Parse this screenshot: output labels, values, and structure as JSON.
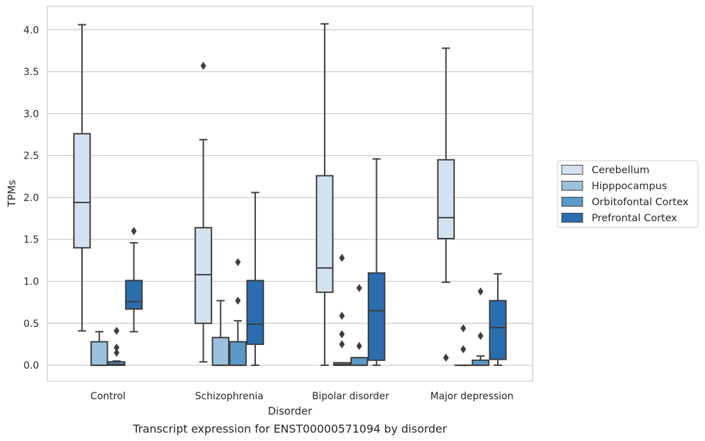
{
  "caption": "Transcript expression for ENST00000571094 by disorder",
  "chart_data": {
    "type": "box",
    "xlabel": "Disorder",
    "ylabel": "TPMs",
    "ylim": [
      -0.19,
      4.28
    ],
    "yticks": [
      0.0,
      0.5,
      1.0,
      1.5,
      2.0,
      2.5,
      3.0,
      3.5,
      4.0
    ],
    "ytick_labels": [
      "0.0",
      "0.5",
      "1.0",
      "1.5",
      "2.0",
      "2.5",
      "3.0",
      "3.5",
      "4.0"
    ],
    "grid": "horizontal",
    "legend_position": "right",
    "categories": [
      "Control",
      "Schizophrenia",
      "Bipolar disorder",
      "Major depression"
    ],
    "series": [
      {
        "name": "Cerebellum",
        "color": "#d3e2f1",
        "boxes": [
          {
            "whisker_low": 0.41,
            "q1": 1.4,
            "median": 1.94,
            "q3": 2.76,
            "whisker_high": 4.06,
            "outliers": []
          },
          {
            "whisker_low": 0.04,
            "q1": 0.5,
            "median": 1.08,
            "q3": 1.64,
            "whisker_high": 2.69,
            "outliers": [
              3.57
            ]
          },
          {
            "whisker_low": 0.0,
            "q1": 0.87,
            "median": 1.16,
            "q3": 2.26,
            "whisker_high": 4.07,
            "outliers": []
          },
          {
            "whisker_low": 0.99,
            "q1": 1.51,
            "median": 1.76,
            "q3": 2.45,
            "whisker_high": 3.78,
            "outliers": [
              0.09
            ]
          }
        ]
      },
      {
        "name": "Hipppocampus",
        "color": "#9ac1dc",
        "boxes": [
          {
            "whisker_low": 0.0,
            "q1": 0.0,
            "median": 0.0,
            "q3": 0.28,
            "whisker_high": 0.4,
            "outliers": []
          },
          {
            "whisker_low": 0.0,
            "q1": 0.0,
            "median": 0.0,
            "q3": 0.33,
            "whisker_high": 0.77,
            "outliers": []
          },
          {
            "whisker_low": 0.0,
            "q1": 0.0,
            "median": 0.01,
            "q3": 0.03,
            "whisker_high": 0.03,
            "outliers": [
              0.25,
              0.37,
              0.59,
              1.28
            ]
          },
          {
            "whisker_low": 0.0,
            "q1": 0.0,
            "median": 0.0,
            "q3": 0.0,
            "whisker_high": 0.0,
            "outliers": [
              0.19,
              0.44
            ]
          }
        ]
      },
      {
        "name": "Orbitofontal Cortex",
        "color": "#5a9ac9",
        "boxes": [
          {
            "whisker_low": 0.0,
            "q1": 0.0,
            "median": 0.01,
            "q3": 0.04,
            "whisker_high": 0.05,
            "outliers": [
              0.15,
              0.21,
              0.41
            ]
          },
          {
            "whisker_low": 0.0,
            "q1": 0.0,
            "median": 0.0,
            "q3": 0.28,
            "whisker_high": 0.53,
            "outliers": [
              0.77,
              1.23
            ]
          },
          {
            "whisker_low": 0.0,
            "q1": 0.0,
            "median": 0.0,
            "q3": 0.09,
            "whisker_high": 0.09,
            "outliers": [
              0.23,
              0.92
            ]
          },
          {
            "whisker_low": 0.0,
            "q1": 0.0,
            "median": 0.0,
            "q3": 0.06,
            "whisker_high": 0.11,
            "outliers": [
              0.35,
              0.88
            ]
          }
        ]
      },
      {
        "name": "Prefrontal Cortex",
        "color": "#2a6eb0",
        "boxes": [
          {
            "whisker_low": 0.4,
            "q1": 0.67,
            "median": 0.76,
            "q3": 1.01,
            "whisker_high": 1.46,
            "outliers": [
              1.6
            ]
          },
          {
            "whisker_low": 0.0,
            "q1": 0.25,
            "median": 0.49,
            "q3": 1.01,
            "whisker_high": 2.06,
            "outliers": []
          },
          {
            "whisker_low": 0.0,
            "q1": 0.06,
            "median": 0.65,
            "q3": 1.1,
            "whisker_high": 2.46,
            "outliers": []
          },
          {
            "whisker_low": 0.0,
            "q1": 0.07,
            "median": 0.45,
            "q3": 0.77,
            "whisker_high": 1.09,
            "outliers": []
          }
        ]
      }
    ]
  }
}
